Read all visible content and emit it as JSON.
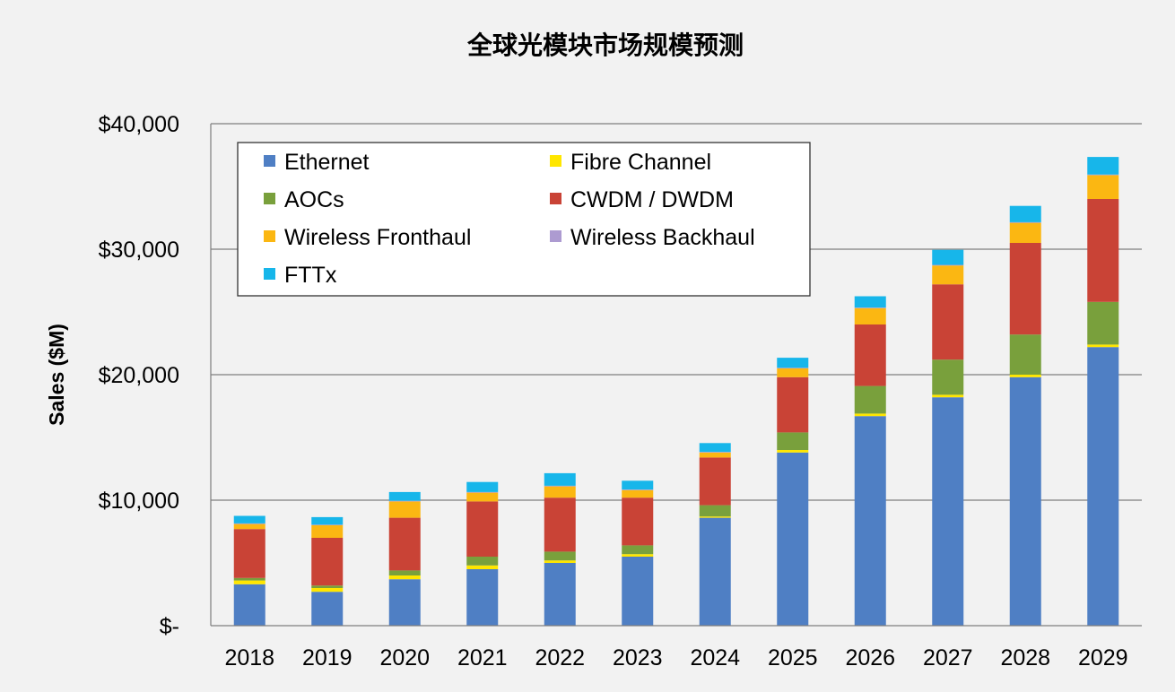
{
  "chart_data": {
    "type": "bar",
    "stacked": true,
    "title": "全球光模块市场规模预测",
    "xlabel": "",
    "ylabel": "Sales ($M)",
    "ylim": [
      0,
      40000
    ],
    "yticks": [
      {
        "value": 0,
        "label": "$-"
      },
      {
        "value": 10000,
        "label": "$10,000"
      },
      {
        "value": 20000,
        "label": "$20,000"
      },
      {
        "value": 30000,
        "label": "$30,000"
      },
      {
        "value": 40000,
        "label": "$40,000"
      }
    ],
    "grid": true,
    "legend_position": "top-left",
    "categories": [
      "2018",
      "2019",
      "2020",
      "2021",
      "2022",
      "2023",
      "2024",
      "2025",
      "2026",
      "2027",
      "2028",
      "2029"
    ],
    "series": [
      {
        "name": "Ethernet",
        "color": "#4f7fc4",
        "values": [
          3300,
          2700,
          3700,
          4500,
          5000,
          5500,
          8600,
          13800,
          16700,
          18200,
          19800,
          22200
        ]
      },
      {
        "name": "Fibre Channel",
        "color": "#ffe600",
        "values": [
          300,
          300,
          300,
          300,
          200,
          200,
          100,
          200,
          200,
          200,
          200,
          200
        ]
      },
      {
        "name": "AOCs",
        "color": "#79a03c",
        "values": [
          200,
          200,
          400,
          700,
          700,
          700,
          900,
          1400,
          2200,
          2800,
          3200,
          3400
        ]
      },
      {
        "name": "CWDM / DWDM",
        "color": "#c94336",
        "values": [
          3900,
          3800,
          4200,
          4400,
          4300,
          3800,
          3800,
          4400,
          4900,
          6000,
          7300,
          8200
        ]
      },
      {
        "name": "Wireless Fronthaul",
        "color": "#fbb712",
        "values": [
          400,
          1000,
          1300,
          700,
          900,
          600,
          400,
          700,
          1300,
          1500,
          1600,
          1900
        ]
      },
      {
        "name": "Wireless Backhaul",
        "color": "#ad9bd1",
        "values": [
          50,
          50,
          50,
          50,
          50,
          50,
          50,
          50,
          50,
          50,
          50,
          50
        ]
      },
      {
        "name": "FTTx",
        "color": "#17b6ea",
        "values": [
          600,
          600,
          700,
          800,
          1000,
          700,
          700,
          800,
          900,
          1200,
          1300,
          1400
        ]
      }
    ]
  }
}
